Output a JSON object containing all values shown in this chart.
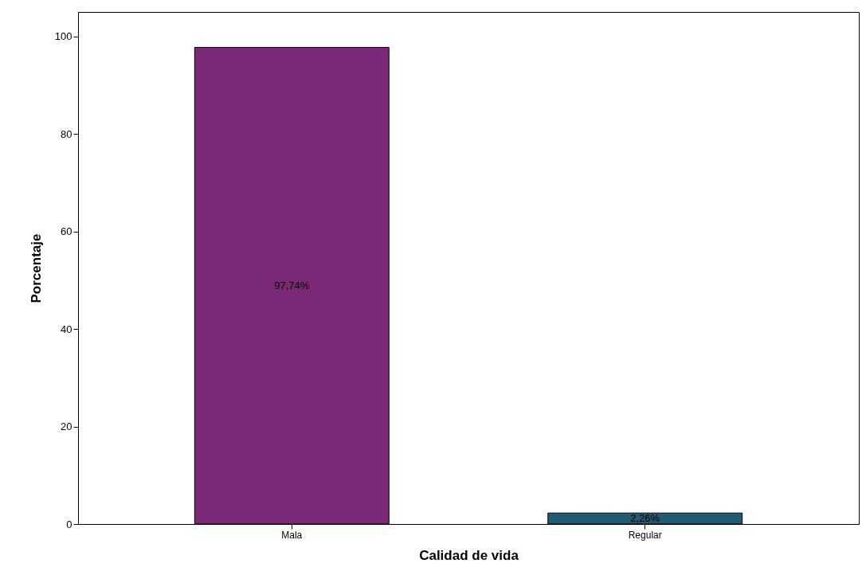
{
  "chart_data": {
    "type": "bar",
    "xlabel": "Calidad de vida",
    "ylabel": "Porcentaje",
    "categories": [
      "Mala",
      "Regular"
    ],
    "values": [
      97.74,
      2.26
    ],
    "colors": [
      "#7b2877",
      "#1f5b72"
    ],
    "value_labels": [
      "97,74%",
      "2,26%"
    ],
    "ylim": [
      0,
      105
    ],
    "yticks": [
      0,
      20,
      40,
      60,
      80,
      100
    ],
    "grid": false
  }
}
